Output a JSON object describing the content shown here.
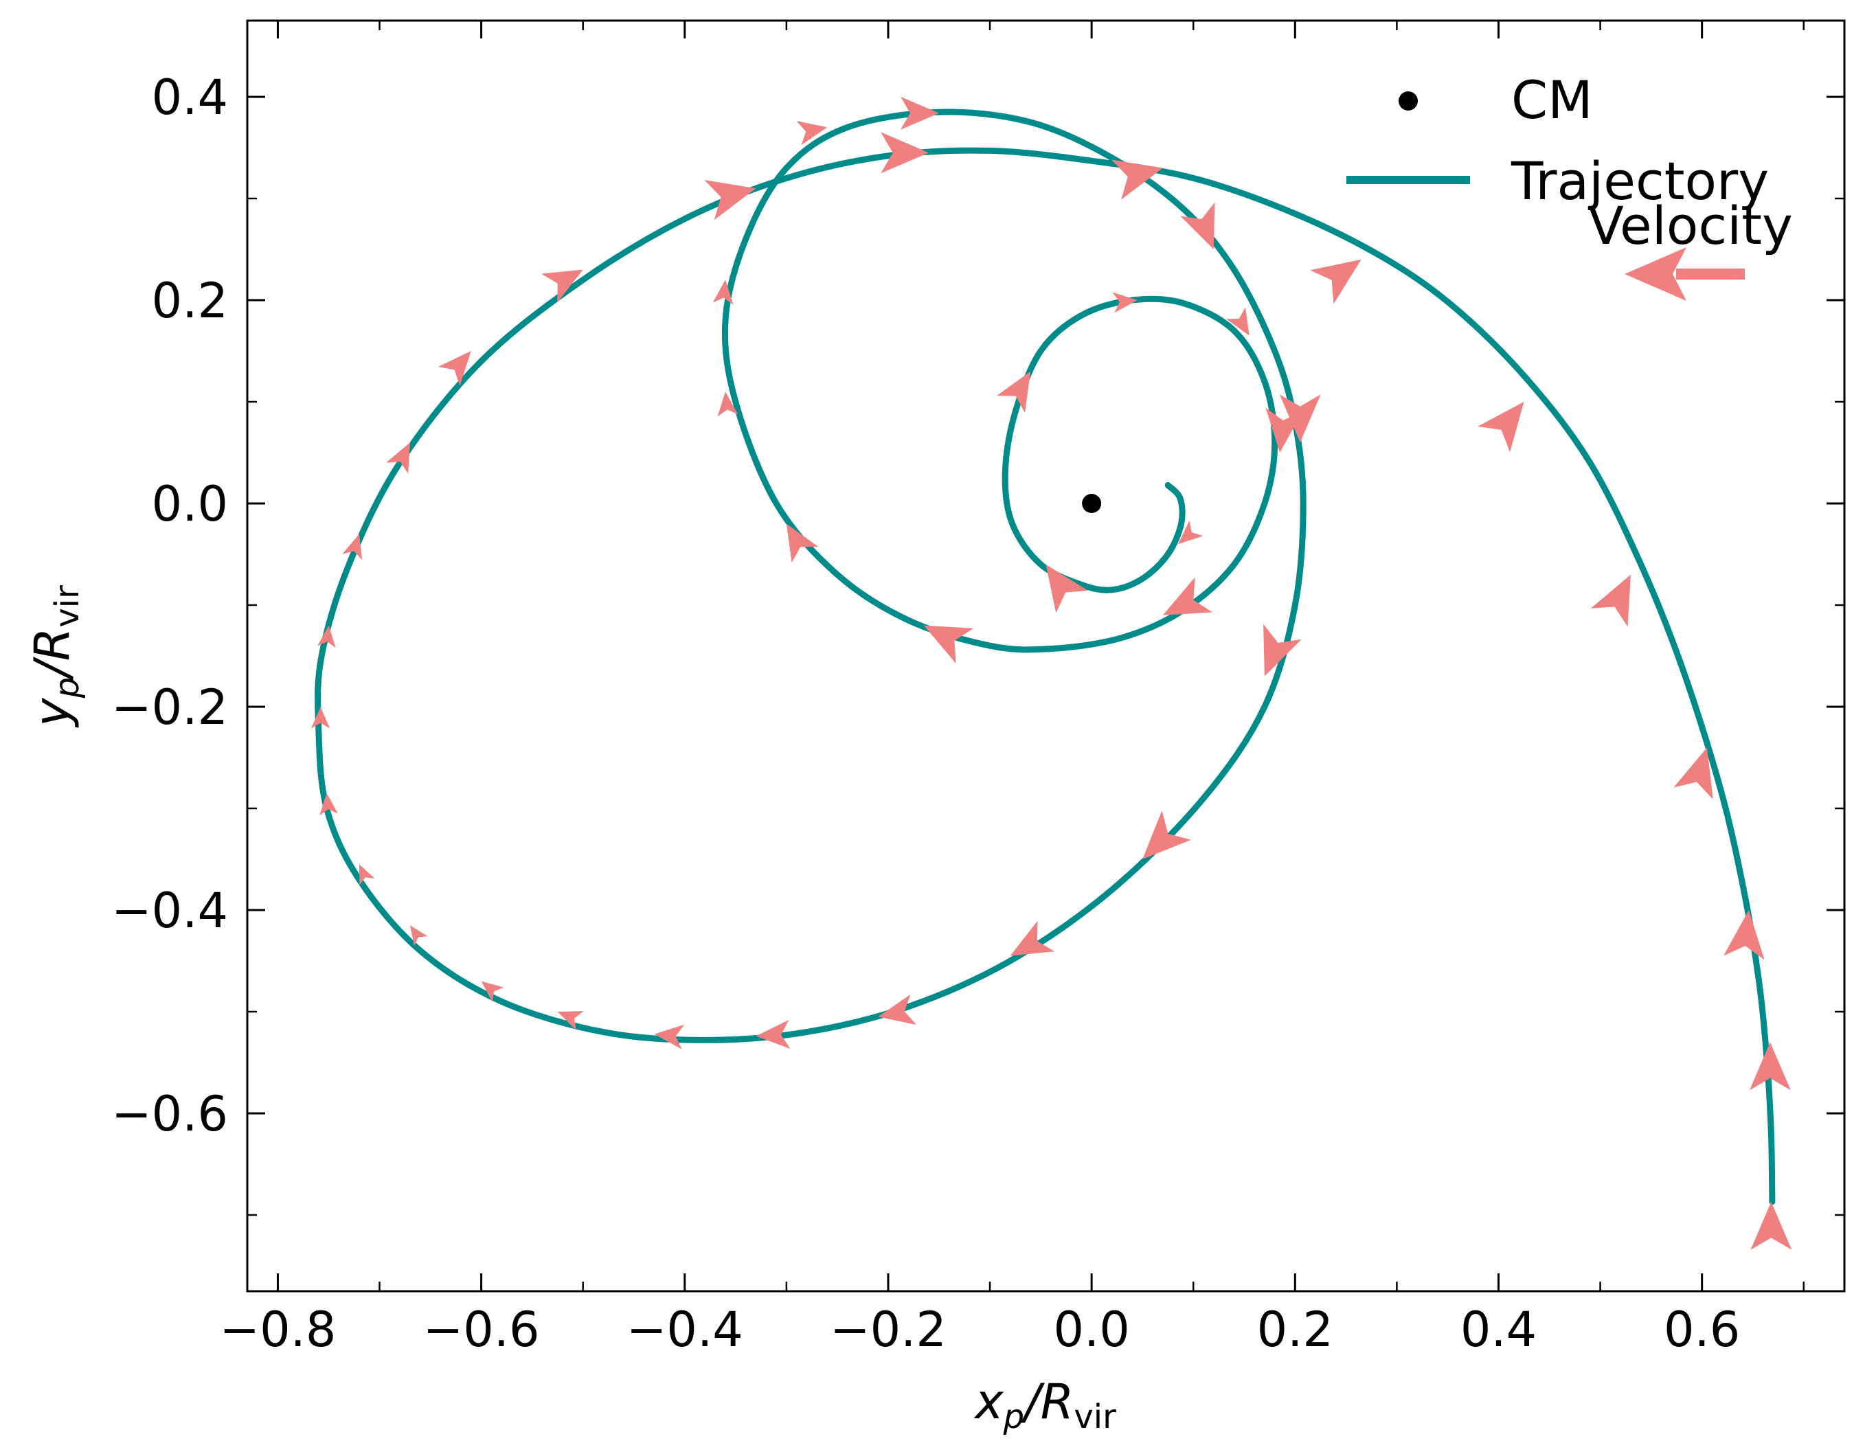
{
  "chart_data": {
    "type": "line",
    "xlabel": {
      "main": "x",
      "sub": "p",
      "mid": "/R",
      "sub2": "vir"
    },
    "ylabel": {
      "main": "y",
      "sub": "p",
      "mid": "/R",
      "sub2": "vir"
    },
    "xlim": [
      -0.83,
      0.74
    ],
    "ylim": [
      -0.775,
      0.475
    ],
    "x_ticks": [
      -0.8,
      -0.6,
      -0.4,
      -0.2,
      0.0,
      0.2,
      0.4,
      0.6
    ],
    "x_tick_labels": [
      "−0.8",
      "−0.6",
      "−0.4",
      "−0.2",
      "0.0",
      "0.2",
      "0.4",
      "0.6"
    ],
    "y_ticks": [
      0.4,
      0.2,
      0.0,
      -0.2,
      -0.4,
      -0.6
    ],
    "y_tick_labels": [
      "0.4",
      "0.2",
      "0.0",
      "−0.2",
      "−0.4",
      "−0.6"
    ],
    "minor_tick_step": 0.1,
    "grid": false,
    "legend": {
      "position": "top-right",
      "entries": [
        {
          "label": "CM",
          "kind": "point"
        },
        {
          "label": "Trajectory",
          "kind": "line"
        },
        {
          "label": "Velocity",
          "kind": "arrow"
        }
      ]
    },
    "colors": {
      "trajectory": "#008b8b",
      "velocity": "#f08080",
      "cm": "#000000"
    },
    "center_of_mass": {
      "x": 0.0,
      "y": 0.0
    },
    "trajectory": {
      "name": "Trajectory",
      "points": [
        [
          0.669,
          -0.687
        ],
        [
          0.668,
          -0.62
        ],
        [
          0.664,
          -0.55
        ],
        [
          0.656,
          -0.47
        ],
        [
          0.641,
          -0.38
        ],
        [
          0.618,
          -0.28
        ],
        [
          0.58,
          -0.16
        ],
        [
          0.54,
          -0.06
        ],
        [
          0.49,
          0.04
        ],
        [
          0.43,
          0.12
        ],
        [
          0.36,
          0.19
        ],
        [
          0.29,
          0.24
        ],
        [
          0.2,
          0.285
        ],
        [
          0.1,
          0.32
        ],
        [
          0.0,
          0.337
        ],
        [
          -0.1,
          0.347
        ],
        [
          -0.2,
          0.342
        ],
        [
          -0.3,
          0.32
        ],
        [
          -0.4,
          0.28
        ],
        [
          -0.5,
          0.22
        ],
        [
          -0.6,
          0.14
        ],
        [
          -0.68,
          0.04
        ],
        [
          -0.73,
          -0.06
        ],
        [
          -0.757,
          -0.15
        ],
        [
          -0.76,
          -0.22
        ],
        [
          -0.752,
          -0.3
        ],
        [
          -0.72,
          -0.37
        ],
        [
          -0.66,
          -0.44
        ],
        [
          -0.58,
          -0.49
        ],
        [
          -0.48,
          -0.52
        ],
        [
          -0.38,
          -0.528
        ],
        [
          -0.28,
          -0.52
        ],
        [
          -0.18,
          -0.495
        ],
        [
          -0.08,
          -0.45
        ],
        [
          0.02,
          -0.38
        ],
        [
          0.11,
          -0.29
        ],
        [
          0.17,
          -0.2
        ],
        [
          0.2,
          -0.1
        ],
        [
          0.208,
          0.0
        ],
        [
          0.2,
          0.08
        ],
        [
          0.18,
          0.15
        ],
        [
          0.14,
          0.23
        ],
        [
          0.09,
          0.29
        ],
        [
          0.02,
          0.34
        ],
        [
          -0.06,
          0.375
        ],
        [
          -0.15,
          0.385
        ],
        [
          -0.24,
          0.37
        ],
        [
          -0.3,
          0.33
        ],
        [
          -0.34,
          0.26
        ],
        [
          -0.36,
          0.18
        ],
        [
          -0.35,
          0.1
        ],
        [
          -0.31,
          0.0
        ],
        [
          -0.25,
          -0.07
        ],
        [
          -0.18,
          -0.115
        ],
        [
          -0.1,
          -0.14
        ],
        [
          -0.04,
          -0.143
        ],
        [
          0.03,
          -0.132
        ],
        [
          0.09,
          -0.105
        ],
        [
          0.14,
          -0.06
        ],
        [
          0.17,
          0.0
        ],
        [
          0.18,
          0.06
        ],
        [
          0.17,
          0.12
        ],
        [
          0.14,
          0.17
        ],
        [
          0.09,
          0.197
        ],
        [
          0.04,
          0.2
        ],
        [
          -0.01,
          0.185
        ],
        [
          -0.05,
          0.15
        ],
        [
          -0.075,
          0.09
        ],
        [
          -0.085,
          0.03
        ],
        [
          -0.078,
          -0.02
        ],
        [
          -0.05,
          -0.06
        ],
        [
          -0.01,
          -0.08
        ],
        [
          0.02,
          -0.085
        ],
        [
          0.05,
          -0.074
        ],
        [
          0.075,
          -0.05
        ],
        [
          0.088,
          -0.02
        ],
        [
          0.087,
          0.005
        ],
        [
          0.075,
          0.018
        ]
      ]
    },
    "velocity_arrows": [
      {
        "x": 0.668,
        "y": -0.687,
        "dx": 0.0,
        "dy": 1.0,
        "size": 1.0
      },
      {
        "x": 0.667,
        "y": -0.53,
        "dx": 0.0,
        "dy": 1.0,
        "size": 1.0
      },
      {
        "x": 0.646,
        "y": -0.4,
        "dx": 0.1,
        "dy": 1.0,
        "size": 1.0
      },
      {
        "x": 0.605,
        "y": -0.24,
        "dx": 0.3,
        "dy": 1.0,
        "size": 1.0
      },
      {
        "x": 0.53,
        "y": -0.07,
        "dx": 0.5,
        "dy": 1.0,
        "size": 1.0
      },
      {
        "x": 0.425,
        "y": 0.1,
        "dx": 0.8,
        "dy": 1.0,
        "size": 1.0
      },
      {
        "x": 0.265,
        "y": 0.24,
        "dx": 1.0,
        "dy": 0.7,
        "size": 1.0
      },
      {
        "x": 0.07,
        "y": 0.33,
        "dx": 1.0,
        "dy": 0.25,
        "size": 1.0
      },
      {
        "x": -0.16,
        "y": 0.345,
        "dx": 1.0,
        "dy": 0.0,
        "size": 1.0
      },
      {
        "x": -0.33,
        "y": 0.31,
        "dx": 1.0,
        "dy": 0.25,
        "size": 1.0
      },
      {
        "x": -0.5,
        "y": 0.23,
        "dx": 1.0,
        "dy": 0.55,
        "size": 0.8
      },
      {
        "x": -0.61,
        "y": 0.15,
        "dx": 0.7,
        "dy": 0.8,
        "size": 0.7
      },
      {
        "x": -0.67,
        "y": 0.06,
        "dx": 0.5,
        "dy": 1.0,
        "size": 0.6
      },
      {
        "x": -0.72,
        "y": -0.03,
        "dx": 0.3,
        "dy": 1.0,
        "size": 0.5
      },
      {
        "x": -0.75,
        "y": -0.12,
        "dx": 0.1,
        "dy": 1.0,
        "size": 0.45
      },
      {
        "x": -0.758,
        "y": -0.2,
        "dx": 0.0,
        "dy": 1.0,
        "size": 0.45
      },
      {
        "x": -0.752,
        "y": -0.285,
        "dx": -0.1,
        "dy": 1.0,
        "size": 0.45
      },
      {
        "x": -0.72,
        "y": -0.355,
        "dx": -0.45,
        "dy": 1.0,
        "size": 0.4
      },
      {
        "x": -0.67,
        "y": -0.415,
        "dx": -0.7,
        "dy": 1.0,
        "size": 0.4
      },
      {
        "x": -0.6,
        "y": -0.47,
        "dx": -1.0,
        "dy": 0.8,
        "size": 0.45
      },
      {
        "x": -0.525,
        "y": -0.5,
        "dx": -1.0,
        "dy": 0.4,
        "size": 0.5
      },
      {
        "x": -0.43,
        "y": -0.522,
        "dx": -1.0,
        "dy": 0.1,
        "size": 0.6
      },
      {
        "x": -0.33,
        "y": -0.524,
        "dx": -1.0,
        "dy": -0.05,
        "size": 0.7
      },
      {
        "x": -0.21,
        "y": -0.505,
        "dx": -1.0,
        "dy": -0.2,
        "size": 0.75
      },
      {
        "x": -0.08,
        "y": -0.445,
        "dx": -1.0,
        "dy": -0.55,
        "size": 0.85
      },
      {
        "x": 0.05,
        "y": -0.35,
        "dx": -0.8,
        "dy": -0.8,
        "size": 1.0
      },
      {
        "x": 0.17,
        "y": -0.17,
        "dx": -0.4,
        "dy": -1.0,
        "size": 1.0
      },
      {
        "x": 0.205,
        "y": 0.06,
        "dx": 0.0,
        "dy": -1.0,
        "size": 1.0
      },
      {
        "x": 0.12,
        "y": 0.25,
        "dx": 0.4,
        "dy": -1.0,
        "size": 0.9
      },
      {
        "x": -0.15,
        "y": 0.384,
        "dx": 1.0,
        "dy": 0.0,
        "size": 0.8
      },
      {
        "x": -0.26,
        "y": 0.37,
        "dx": 1.0,
        "dy": 0.2,
        "size": 0.6
      },
      {
        "x": -0.36,
        "y": 0.22,
        "dx": 0.1,
        "dy": 1.0,
        "size": 0.5
      },
      {
        "x": -0.36,
        "y": 0.11,
        "dx": -0.1,
        "dy": 1.0,
        "size": 0.5
      },
      {
        "x": -0.3,
        "y": -0.02,
        "dx": -0.6,
        "dy": 1.0,
        "size": 0.75
      },
      {
        "x": -0.165,
        "y": -0.12,
        "dx": -1.0,
        "dy": 0.5,
        "size": 0.95
      },
      {
        "x": 0.07,
        "y": -0.11,
        "dx": -1.0,
        "dy": -0.5,
        "size": 0.95
      },
      {
        "x": 0.185,
        "y": 0.05,
        "dx": -0.1,
        "dy": -1.0,
        "size": 0.9
      },
      {
        "x": 0.155,
        "y": 0.165,
        "dx": 0.6,
        "dy": -1.0,
        "size": 0.55
      },
      {
        "x": 0.045,
        "y": 0.2,
        "dx": 1.0,
        "dy": 0.1,
        "size": 0.5
      },
      {
        "x": -0.06,
        "y": 0.13,
        "dx": 0.6,
        "dy": 1.0,
        "size": 0.8
      },
      {
        "x": -0.045,
        "y": -0.06,
        "dx": -0.7,
        "dy": 1.0,
        "size": 0.95
      },
      {
        "x": 0.085,
        "y": -0.04,
        "dx": -0.8,
        "dy": -0.7,
        "size": 0.5
      }
    ]
  }
}
